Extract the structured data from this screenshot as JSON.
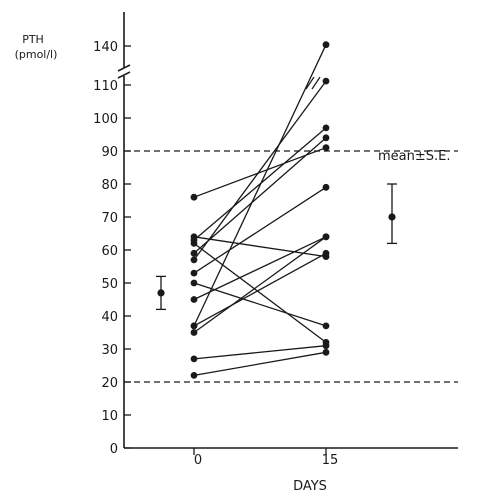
{
  "chart_data": {
    "type": "line",
    "ylabel": [
      "PTH",
      "(pmol/l)"
    ],
    "xlabel": "DAYS",
    "x_ticks": [
      "0",
      "15"
    ],
    "y_ticks": [
      "0",
      "10",
      "20",
      "30",
      "40",
      "50",
      "60",
      "70",
      "80",
      "90",
      "100",
      "110",
      "140"
    ],
    "ylim": [
      0,
      140
    ],
    "axis_break": "between 110 and 140",
    "reference_lines": [
      20,
      90
    ],
    "annotation": "mean±S.E.",
    "mean_se": [
      {
        "day": "0",
        "mean": 47,
        "se_low": 42,
        "se_high": 52
      },
      {
        "day": "15",
        "mean": 70,
        "se_low": 62,
        "se_high": 80
      }
    ],
    "series": [
      {
        "values": [
          22,
          29
        ]
      },
      {
        "values": [
          27,
          31
        ]
      },
      {
        "values": [
          35,
          64
        ]
      },
      {
        "values": [
          37,
          59
        ]
      },
      {
        "values": [
          37,
          141
        ]
      },
      {
        "values": [
          45,
          64
        ]
      },
      {
        "values": [
          50,
          37
        ]
      },
      {
        "values": [
          53,
          79
        ]
      },
      {
        "values": [
          57,
          113
        ]
      },
      {
        "values": [
          59,
          94
        ]
      },
      {
        "values": [
          62,
          32
        ]
      },
      {
        "values": [
          63,
          97
        ]
      },
      {
        "values": [
          64,
          58
        ]
      },
      {
        "values": [
          76,
          91
        ]
      }
    ]
  }
}
